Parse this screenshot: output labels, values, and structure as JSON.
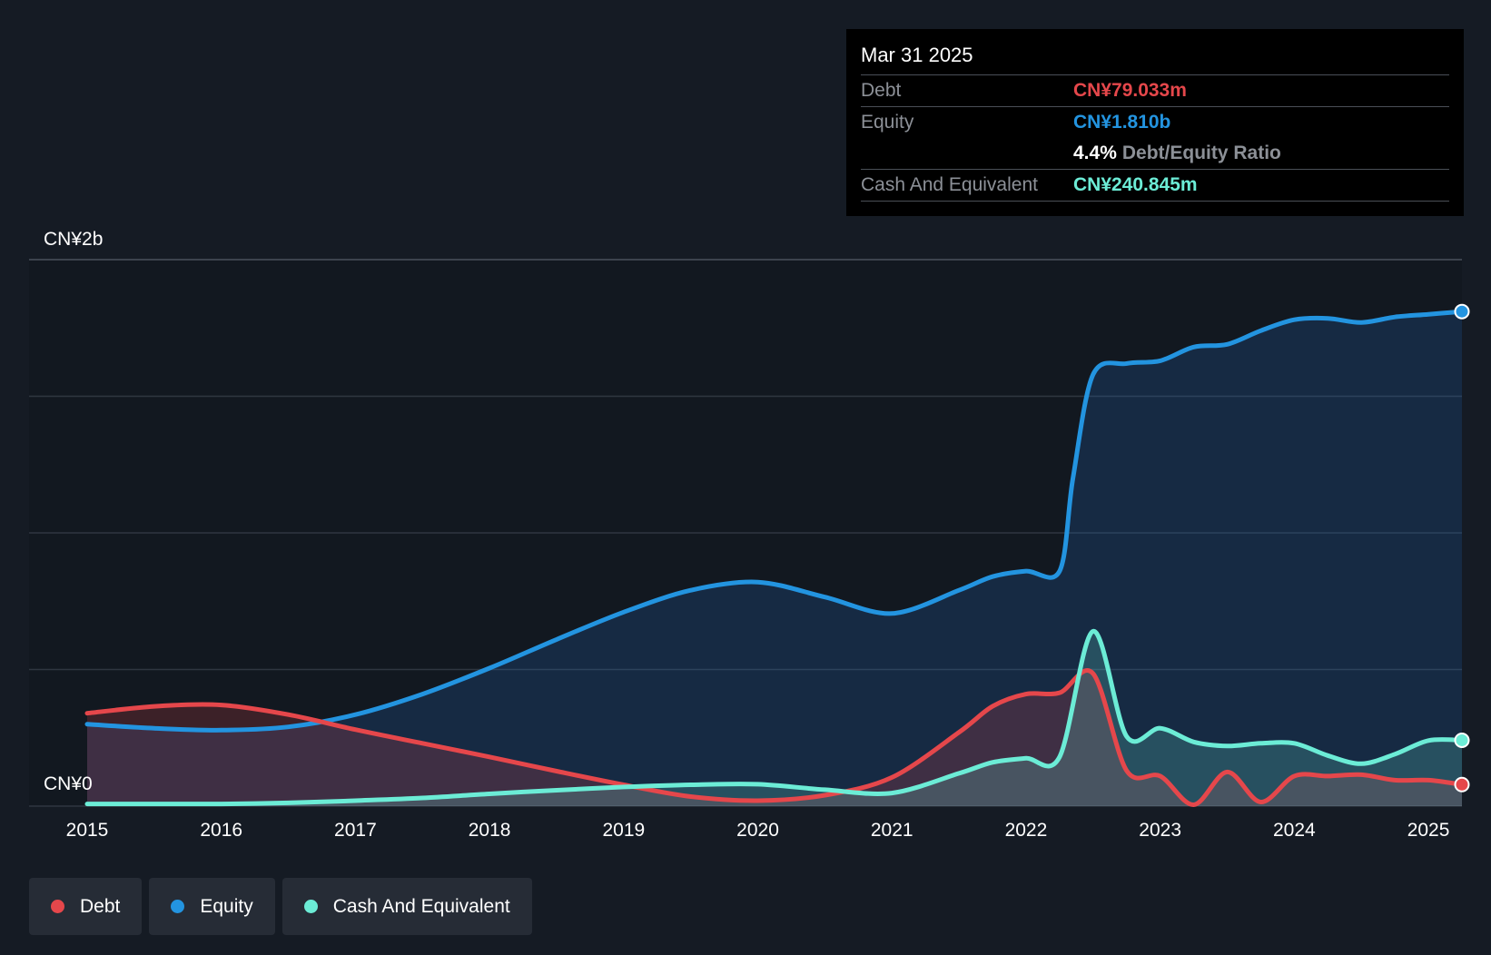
{
  "tooltip": {
    "date": "Mar 31 2025",
    "debt_label": "Debt",
    "debt_value": "CN¥79.033m",
    "equity_label": "Equity",
    "equity_value": "CN¥1.810b",
    "ratio_value": "4.4%",
    "ratio_label": "Debt/Equity Ratio",
    "cash_label": "Cash And Equivalent",
    "cash_value": "CN¥240.845m"
  },
  "legend": [
    {
      "label": "Debt",
      "color": "#e5474b"
    },
    {
      "label": "Equity",
      "color": "#2394e0"
    },
    {
      "label": "Cash And Equivalent",
      "color": "#6cecd6"
    }
  ],
  "colors": {
    "debt": "#e5474b",
    "equity": "#2394e0",
    "cash": "#6cecd6",
    "background": "#151b24",
    "grid": "#3a414b"
  },
  "chart_data": {
    "type": "area",
    "title": "",
    "xlabel": "",
    "ylabel": "",
    "y_top_label": "CN¥2b",
    "y_bottom_label": "CN¥0",
    "ylim": [
      0,
      2000
    ],
    "xlim": [
      2015,
      2025.25
    ],
    "x_ticks": [
      2015,
      2016,
      2017,
      2018,
      2019,
      2020,
      2021,
      2022,
      2023,
      2024,
      2025
    ],
    "x_tick_labels": [
      "2015",
      "2016",
      "2017",
      "2018",
      "2019",
      "2020",
      "2021",
      "2022",
      "2023",
      "2024",
      "2025"
    ],
    "units": "CN¥ million",
    "series": [
      {
        "name": "Equity",
        "points": [
          [
            2015,
            300
          ],
          [
            2015.5,
            285
          ],
          [
            2016,
            278
          ],
          [
            2016.5,
            290
          ],
          [
            2017,
            335
          ],
          [
            2017.5,
            410
          ],
          [
            2018,
            505
          ],
          [
            2018.5,
            610
          ],
          [
            2019,
            710
          ],
          [
            2019.5,
            790
          ],
          [
            2020,
            820
          ],
          [
            2020.5,
            765
          ],
          [
            2021,
            705
          ],
          [
            2021.5,
            790
          ],
          [
            2021.75,
            840
          ],
          [
            2022,
            860
          ],
          [
            2022.25,
            860
          ],
          [
            2022.35,
            1200
          ],
          [
            2022.5,
            1580
          ],
          [
            2022.75,
            1620
          ],
          [
            2023,
            1630
          ],
          [
            2023.25,
            1680
          ],
          [
            2023.5,
            1690
          ],
          [
            2023.75,
            1740
          ],
          [
            2024,
            1780
          ],
          [
            2024.25,
            1785
          ],
          [
            2024.5,
            1770
          ],
          [
            2024.75,
            1790
          ],
          [
            2025,
            1800
          ],
          [
            2025.25,
            1810
          ]
        ]
      },
      {
        "name": "Debt",
        "points": [
          [
            2015,
            340
          ],
          [
            2015.5,
            365
          ],
          [
            2016,
            370
          ],
          [
            2016.5,
            335
          ],
          [
            2017,
            280
          ],
          [
            2017.5,
            230
          ],
          [
            2018,
            180
          ],
          [
            2018.5,
            128
          ],
          [
            2019,
            78
          ],
          [
            2019.5,
            35
          ],
          [
            2020,
            20
          ],
          [
            2020.5,
            40
          ],
          [
            2021,
            105
          ],
          [
            2021.5,
            270
          ],
          [
            2021.75,
            365
          ],
          [
            2022,
            410
          ],
          [
            2022.25,
            415
          ],
          [
            2022.5,
            485
          ],
          [
            2022.75,
            130
          ],
          [
            2023,
            110
          ],
          [
            2023.25,
            5
          ],
          [
            2023.5,
            125
          ],
          [
            2023.75,
            15
          ],
          [
            2024,
            110
          ],
          [
            2024.25,
            110
          ],
          [
            2024.5,
            115
          ],
          [
            2024.75,
            95
          ],
          [
            2025,
            95
          ],
          [
            2025.25,
            79
          ]
        ]
      },
      {
        "name": "Cash And Equivalent",
        "points": [
          [
            2015,
            8
          ],
          [
            2015.5,
            8
          ],
          [
            2016,
            8
          ],
          [
            2016.5,
            12
          ],
          [
            2017,
            20
          ],
          [
            2017.5,
            30
          ],
          [
            2018,
            45
          ],
          [
            2018.5,
            58
          ],
          [
            2019,
            70
          ],
          [
            2019.5,
            78
          ],
          [
            2020,
            80
          ],
          [
            2020.5,
            60
          ],
          [
            2021,
            48
          ],
          [
            2021.5,
            120
          ],
          [
            2021.75,
            160
          ],
          [
            2022,
            175
          ],
          [
            2022.25,
            180
          ],
          [
            2022.5,
            640
          ],
          [
            2022.75,
            255
          ],
          [
            2023,
            285
          ],
          [
            2023.25,
            235
          ],
          [
            2023.5,
            220
          ],
          [
            2023.75,
            230
          ],
          [
            2024,
            230
          ],
          [
            2024.25,
            185
          ],
          [
            2024.5,
            155
          ],
          [
            2024.75,
            190
          ],
          [
            2025,
            240
          ],
          [
            2025.25,
            241
          ]
        ]
      }
    ]
  }
}
